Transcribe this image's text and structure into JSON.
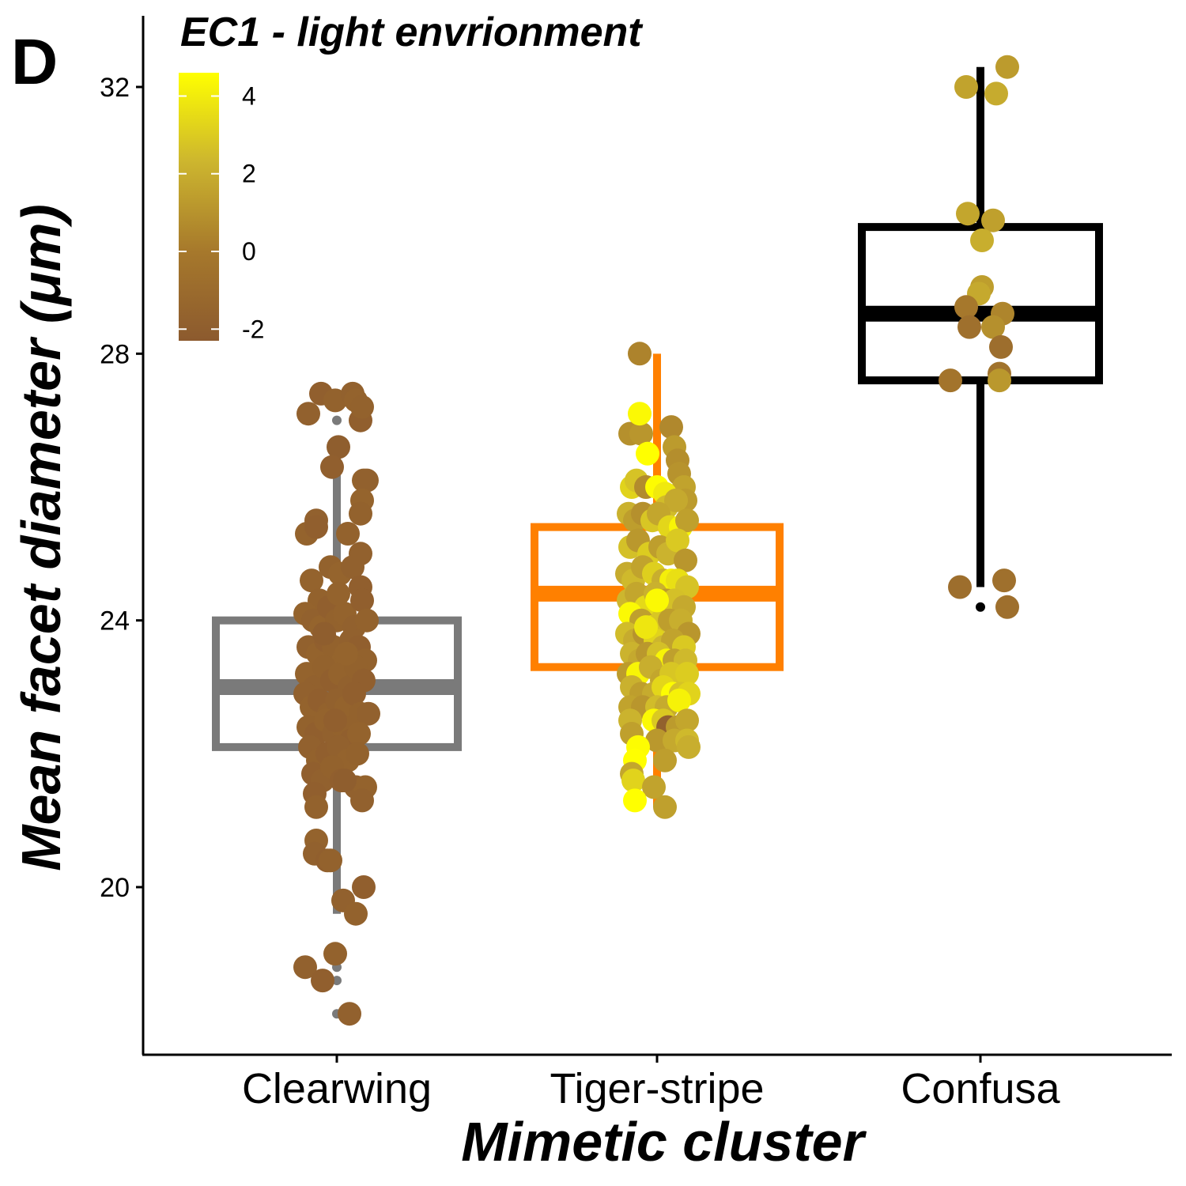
{
  "panel_label": "D",
  "chart_data": {
    "type": "boxplot-jitter",
    "title": "EC1 - light envrionment",
    "xlabel": "Mimetic cluster",
    "ylabel": "Mean facet diameter (μm)",
    "ylim": [
      17.5,
      33.0
    ],
    "yticks": [
      20,
      24,
      28,
      32
    ],
    "ytick_labels": [
      "20",
      "24",
      "28",
      "32"
    ],
    "categories": [
      "Clearwing",
      "Tiger-stripe",
      "Confusa"
    ],
    "box_colors": [
      "#7a7a7a",
      "#ff8000",
      "#000000"
    ],
    "boxes": [
      {
        "category": "Clearwing",
        "q1": 22.1,
        "median": 23.0,
        "q3": 24.0,
        "whisker_low": 19.6,
        "whisker_high": 26.5,
        "outliers": [
          27.0,
          18.8,
          18.6,
          18.1
        ]
      },
      {
        "category": "Tiger-stripe",
        "q1": 23.3,
        "median": 24.4,
        "q3": 25.4,
        "whisker_low": 21.2,
        "whisker_high": 28.0,
        "outliers": []
      },
      {
        "category": "Confusa",
        "q1": 27.6,
        "median": 28.6,
        "q3": 29.9,
        "whisker_low": 24.5,
        "whisker_high": 32.3,
        "outliers": [
          24.2
        ]
      }
    ],
    "color_scale": {
      "label": "EC1 - light envrionment",
      "range": [
        -2.3,
        4.6
      ],
      "ticks": [
        4,
        2,
        0,
        -2
      ],
      "tick_labels": [
        "4",
        "2",
        "0",
        "-2"
      ],
      "colors": [
        "#8c5a2e",
        "#a6782c",
        "#cdb62e",
        "#ffff00"
      ]
    },
    "points": {
      "Clearwing": [
        [
          -0.18,
          27.1,
          -1.8
        ],
        [
          -0.1,
          27.4,
          -1.9
        ],
        [
          -0.01,
          27.3,
          -1.7
        ],
        [
          0.1,
          27.4,
          -1.8
        ],
        [
          0.12,
          27.3,
          -1.6
        ],
        [
          0.15,
          27.0,
          -1.9
        ],
        [
          0.16,
          27.2,
          -1.7
        ],
        [
          0.01,
          26.6,
          -2.0
        ],
        [
          -0.03,
          26.3,
          -1.9
        ],
        [
          0.17,
          26.1,
          -1.7
        ],
        [
          0.19,
          26.1,
          -1.8
        ],
        [
          0.16,
          25.8,
          -1.5
        ],
        [
          0.15,
          25.6,
          -1.7
        ],
        [
          -0.19,
          25.3,
          -1.6
        ],
        [
          -0.13,
          25.5,
          -1.8
        ],
        [
          -0.13,
          25.4,
          -1.9
        ],
        [
          0.07,
          25.3,
          -1.7
        ],
        [
          0.15,
          25.0,
          -1.8
        ],
        [
          -0.16,
          24.6,
          -1.6
        ],
        [
          -0.04,
          24.8,
          -1.7
        ],
        [
          0.02,
          24.7,
          -1.5
        ],
        [
          0.1,
          24.8,
          -1.8
        ],
        [
          0.15,
          24.5,
          -1.9
        ],
        [
          -0.11,
          24.3,
          -1.7
        ],
        [
          -0.2,
          24.1,
          -1.6
        ],
        [
          -0.15,
          24.0,
          -1.8
        ],
        [
          -0.1,
          23.9,
          -1.5
        ],
        [
          -0.05,
          24.2,
          -1.9
        ],
        [
          0.0,
          24.0,
          -1.7
        ],
        [
          0.05,
          24.1,
          -1.6
        ],
        [
          0.11,
          23.9,
          -1.8
        ],
        [
          0.16,
          24.3,
          -1.9
        ],
        [
          0.19,
          24.0,
          -1.7
        ],
        [
          -0.18,
          23.6,
          -1.8
        ],
        [
          -0.12,
          23.5,
          -1.6
        ],
        [
          -0.07,
          23.7,
          -1.9
        ],
        [
          -0.02,
          23.6,
          -1.7
        ],
        [
          0.04,
          23.4,
          -1.5
        ],
        [
          0.09,
          23.7,
          -1.8
        ],
        [
          0.14,
          23.6,
          -1.9
        ],
        [
          0.18,
          23.4,
          -1.7
        ],
        [
          -0.19,
          23.2,
          -1.6
        ],
        [
          -0.14,
          23.0,
          -1.8
        ],
        [
          -0.08,
          23.3,
          -1.7
        ],
        [
          -0.03,
          23.1,
          -1.9
        ],
        [
          0.02,
          23.2,
          -1.6
        ],
        [
          0.08,
          23.0,
          -1.8
        ],
        [
          0.12,
          23.3,
          -1.7
        ],
        [
          0.17,
          23.1,
          -1.9
        ],
        [
          -0.2,
          22.9,
          -1.8
        ],
        [
          -0.16,
          22.7,
          -1.6
        ],
        [
          -0.11,
          22.8,
          -1.9
        ],
        [
          -0.05,
          22.6,
          -1.7
        ],
        [
          0.0,
          22.8,
          -1.8
        ],
        [
          0.06,
          22.7,
          -1.6
        ],
        [
          0.11,
          22.9,
          -1.9
        ],
        [
          0.15,
          22.6,
          -1.7
        ],
        [
          0.2,
          22.6,
          -1.8
        ],
        [
          -0.18,
          22.4,
          -1.7
        ],
        [
          -0.13,
          22.3,
          -1.9
        ],
        [
          -0.07,
          22.5,
          -1.6
        ],
        [
          -0.02,
          22.3,
          -1.8
        ],
        [
          0.04,
          22.4,
          -1.7
        ],
        [
          0.09,
          22.2,
          -1.9
        ],
        [
          0.14,
          22.3,
          -1.6
        ],
        [
          -0.17,
          22.1,
          -1.8
        ],
        [
          -0.12,
          21.9,
          -1.7
        ],
        [
          -0.06,
          22.0,
          -1.9
        ],
        [
          0.01,
          22.1,
          -1.8
        ],
        [
          0.07,
          21.9,
          -1.6
        ],
        [
          0.13,
          22.0,
          -1.7
        ],
        [
          -0.15,
          21.7,
          -1.9
        ],
        [
          -0.09,
          21.6,
          -1.8
        ],
        [
          -0.03,
          21.8,
          -1.7
        ],
        [
          0.03,
          21.6,
          -1.9
        ],
        [
          0.12,
          21.5,
          -1.8
        ],
        [
          0.18,
          21.5,
          -1.6
        ],
        [
          -0.14,
          21.4,
          -1.9
        ],
        [
          -0.13,
          21.2,
          -1.7
        ],
        [
          0.16,
          21.3,
          -1.8
        ],
        [
          -0.13,
          20.7,
          -1.6
        ],
        [
          -0.14,
          20.5,
          -1.8
        ],
        [
          -0.06,
          20.4,
          -1.9
        ],
        [
          -0.04,
          20.4,
          -1.7
        ],
        [
          0.04,
          19.8,
          -1.8
        ],
        [
          0.17,
          20.0,
          -1.9
        ],
        [
          0.12,
          19.6,
          -1.7
        ],
        [
          -0.2,
          18.8,
          -1.8
        ],
        [
          -0.09,
          18.6,
          -1.9
        ],
        [
          -0.01,
          19.0,
          -1.7
        ],
        [
          0.08,
          18.1,
          -1.8
        ],
        [
          -0.08,
          23.8,
          -2.0
        ],
        [
          0.06,
          23.5,
          -1.5
        ],
        [
          0.01,
          24.4,
          -1.6
        ],
        [
          -0.01,
          22.5,
          -1.9
        ],
        [
          0.05,
          21.6,
          -2.0
        ]
      ],
      "Tiger-stripe": [
        [
          -0.11,
          28.0,
          0.4
        ],
        [
          -0.17,
          26.8,
          0.9
        ],
        [
          -0.1,
          26.8,
          1.1
        ],
        [
          -0.11,
          27.1,
          4.4
        ],
        [
          -0.06,
          26.5,
          4.6
        ],
        [
          0.09,
          26.9,
          0.6
        ],
        [
          0.11,
          26.6,
          1.3
        ],
        [
          0.13,
          26.4,
          0.8
        ],
        [
          0.14,
          26.2,
          1.0
        ],
        [
          0.17,
          26.0,
          1.6
        ],
        [
          0.18,
          25.8,
          1.3
        ],
        [
          -0.16,
          26.0,
          3.2
        ],
        [
          -0.13,
          26.1,
          2.7
        ],
        [
          -0.07,
          26.0,
          0.7
        ],
        [
          0.0,
          26.0,
          4.5
        ],
        [
          0.05,
          25.9,
          3.9
        ],
        [
          0.06,
          25.7,
          2.5
        ],
        [
          0.12,
          25.8,
          1.8
        ],
        [
          -0.18,
          25.6,
          2.1
        ],
        [
          -0.14,
          25.5,
          1.4
        ],
        [
          -0.09,
          25.6,
          0.9
        ],
        [
          -0.03,
          25.5,
          2.8
        ],
        [
          0.01,
          25.6,
          1.7
        ],
        [
          0.08,
          25.4,
          3.3
        ],
        [
          0.15,
          25.4,
          4.3
        ],
        [
          0.19,
          25.5,
          1.5
        ],
        [
          -0.17,
          25.1,
          2.6
        ],
        [
          -0.12,
          25.2,
          1.2
        ],
        [
          -0.05,
          25.0,
          3.0
        ],
        [
          0.02,
          25.1,
          1.4
        ],
        [
          0.07,
          25.0,
          2.2
        ],
        [
          0.13,
          25.2,
          2.9
        ],
        [
          0.18,
          24.9,
          1.1
        ],
        [
          -0.19,
          24.7,
          1.9
        ],
        [
          -0.15,
          24.6,
          2.4
        ],
        [
          -0.09,
          24.8,
          1.6
        ],
        [
          -0.02,
          24.7,
          3.1
        ],
        [
          0.04,
          24.6,
          2.0
        ],
        [
          0.09,
          24.6,
          4.1
        ],
        [
          0.13,
          24.6,
          3.6
        ],
        [
          0.19,
          24.5,
          2.7
        ],
        [
          -0.18,
          24.3,
          2.3
        ],
        [
          -0.13,
          24.4,
          1.7
        ],
        [
          -0.07,
          24.2,
          3.4
        ],
        [
          -0.01,
          24.4,
          2.1
        ],
        [
          0.06,
          24.3,
          1.3
        ],
        [
          0.11,
          24.3,
          2.6
        ],
        [
          0.17,
          24.2,
          1.8
        ],
        [
          -0.17,
          24.1,
          4.4
        ],
        [
          -0.1,
          24.0,
          1.5
        ],
        [
          -0.03,
          23.9,
          4.2
        ],
        [
          0.03,
          24.0,
          2.8
        ],
        [
          0.08,
          24.0,
          1.4
        ],
        [
          0.15,
          24.0,
          2.0
        ],
        [
          0.2,
          23.8,
          1.1
        ],
        [
          -0.19,
          23.8,
          2.5
        ],
        [
          -0.14,
          23.7,
          1.9
        ],
        [
          -0.08,
          23.8,
          1.0
        ],
        [
          -0.01,
          23.7,
          3.2
        ],
        [
          0.04,
          23.6,
          2.3
        ],
        [
          0.1,
          23.7,
          1.6
        ],
        [
          0.17,
          23.6,
          2.9
        ],
        [
          -0.16,
          23.5,
          2.2
        ],
        [
          -0.11,
          23.4,
          1.8
        ],
        [
          -0.06,
          23.5,
          1.2
        ],
        [
          0.01,
          23.5,
          2.6
        ],
        [
          0.06,
          23.4,
          4.3
        ],
        [
          0.11,
          23.4,
          1.5
        ],
        [
          0.18,
          23.4,
          2.4
        ],
        [
          -0.18,
          23.2,
          1.3
        ],
        [
          -0.12,
          23.2,
          4.3
        ],
        [
          -0.04,
          23.3,
          2.0
        ],
        [
          0.03,
          23.1,
          1.7
        ],
        [
          0.09,
          23.2,
          2.8
        ],
        [
          0.19,
          23.2,
          3.0
        ],
        [
          -0.16,
          23.0,
          2.1
        ],
        [
          -0.1,
          22.9,
          1.4
        ],
        [
          -0.02,
          22.9,
          1.9
        ],
        [
          0.04,
          23.0,
          3.3
        ],
        [
          0.1,
          22.9,
          4.5
        ],
        [
          0.15,
          22.9,
          2.7
        ],
        [
          0.2,
          22.9,
          3.2
        ],
        [
          -0.17,
          22.7,
          1.6
        ],
        [
          -0.09,
          22.7,
          1.1
        ],
        [
          0.0,
          22.7,
          2.5
        ],
        [
          0.06,
          22.7,
          1.9
        ],
        [
          0.14,
          22.8,
          4.2
        ],
        [
          -0.17,
          22.5,
          2.2
        ],
        [
          -0.02,
          22.5,
          4.4
        ],
        [
          0.04,
          22.5,
          2.9
        ],
        [
          0.07,
          22.4,
          -1.8
        ],
        [
          0.13,
          22.4,
          1.3
        ],
        [
          0.19,
          22.5,
          1.7
        ],
        [
          -0.16,
          22.3,
          1.5
        ],
        [
          0.0,
          22.2,
          1.2
        ],
        [
          0.11,
          22.2,
          1.8
        ],
        [
          0.19,
          22.2,
          2.4
        ],
        [
          0.2,
          22.1,
          2.0
        ],
        [
          -0.12,
          22.1,
          4.5
        ],
        [
          -0.14,
          21.9,
          4.6
        ],
        [
          0.05,
          21.9,
          1.4
        ],
        [
          -0.16,
          21.7,
          1.7
        ],
        [
          -0.15,
          21.6,
          3.2
        ],
        [
          -0.02,
          21.5,
          1.6
        ],
        [
          -0.14,
          21.3,
          4.6
        ],
        [
          0.05,
          21.2,
          1.5
        ],
        [
          0.0,
          24.3,
          4.4
        ],
        [
          -0.07,
          23.9,
          3.8
        ]
      ],
      "Confusa": [
        [
          -0.09,
          32.0,
          1.6
        ],
        [
          0.1,
          31.9,
          1.9
        ],
        [
          0.17,
          32.3,
          1.3
        ],
        [
          -0.08,
          30.1,
          1.7
        ],
        [
          0.08,
          30.0,
          1.5
        ],
        [
          0.01,
          29.7,
          2.0
        ],
        [
          0.01,
          29.0,
          1.4
        ],
        [
          -0.01,
          28.9,
          1.8
        ],
        [
          -0.09,
          28.7,
          0.0
        ],
        [
          0.14,
          28.6,
          0.5
        ],
        [
          -0.07,
          28.4,
          -0.6
        ],
        [
          0.08,
          28.4,
          0.9
        ],
        [
          0.13,
          28.1,
          -0.8
        ],
        [
          0.12,
          27.7,
          -0.4
        ],
        [
          -0.19,
          27.6,
          -0.3
        ],
        [
          0.12,
          27.6,
          1.2
        ],
        [
          -0.13,
          24.5,
          -0.8
        ],
        [
          0.15,
          24.6,
          -0.6
        ],
        [
          0.17,
          24.2,
          -0.7
        ]
      ]
    }
  }
}
